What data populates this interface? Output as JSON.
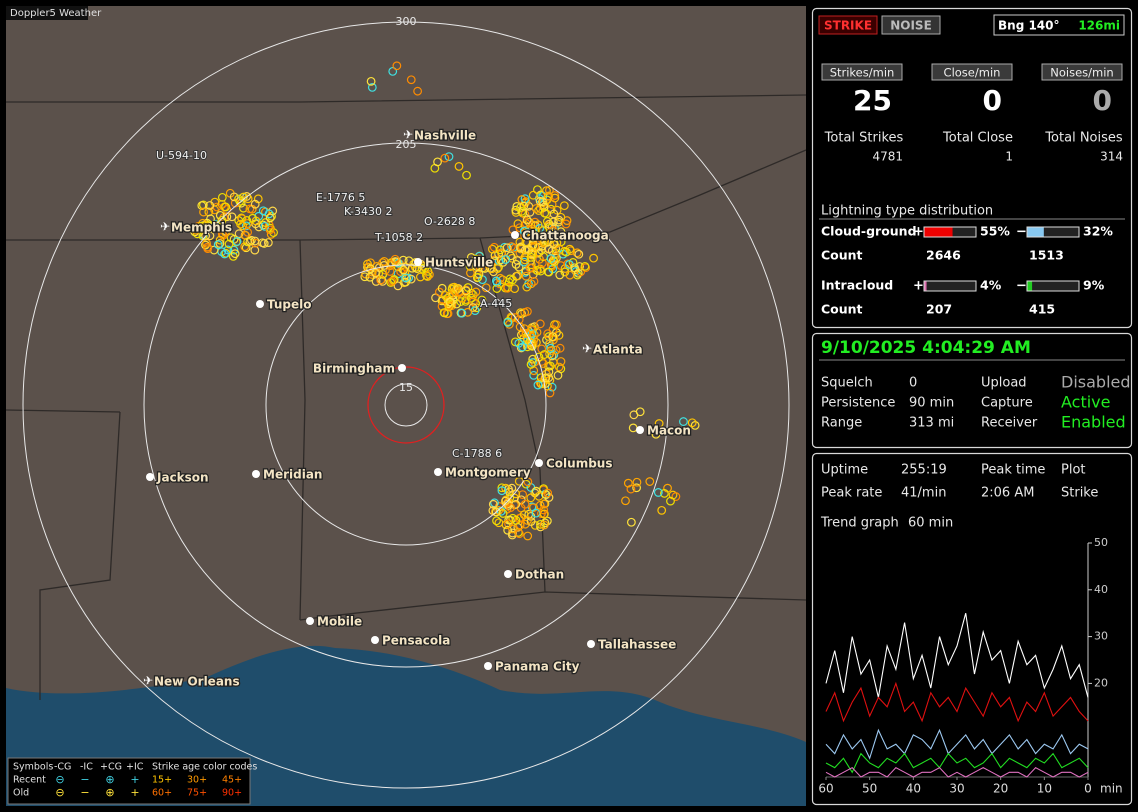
{
  "app_label": "Doppler5 Weather",
  "map": {
    "range_labels": [
      "300",
      "205",
      "15"
    ],
    "airports": [
      "Nashville",
      "Memphis",
      "Atlanta",
      "New Orleans"
    ],
    "cities": [
      "Chattanooga",
      "Huntsville",
      "Tupelo",
      "Birmingham",
      "Macon",
      "Jackson",
      "Meridian",
      "Montgomery",
      "Columbus",
      "Dothan",
      "Mobile",
      "Pensacola",
      "Tallahassee",
      "Panama City"
    ],
    "tracks": [
      "U-594-10",
      "E-1776 5",
      "K-3430 2",
      "O-2628 8",
      "T-1058 2",
      "A-445",
      "C-1788 6"
    ],
    "legend": {
      "title": "Symbols",
      "columns": [
        "-CG",
        "-IC",
        "+CG",
        "+IC"
      ],
      "age_title": "Strike age color codes",
      "rows": [
        {
          "label": "Recent",
          "ages": [
            "15+",
            "30+",
            "45+"
          ]
        },
        {
          "label": "Old",
          "ages": [
            "60+",
            "75+",
            "90+"
          ]
        }
      ]
    }
  },
  "panel": {
    "mode_buttons": [
      "STRIKE",
      "NOISE"
    ],
    "bearing": "Bng 140°",
    "distance": "126mi",
    "rates": [
      {
        "label": "Strikes/min",
        "value": 25
      },
      {
        "label": "Close/min",
        "value": 0
      },
      {
        "label": "Noises/min",
        "value": 0
      }
    ],
    "totals": [
      {
        "label": "Total Strikes",
        "value": 4781
      },
      {
        "label": "Total Close",
        "value": 1
      },
      {
        "label": "Total Noises",
        "value": 314
      }
    ],
    "distribution": {
      "title": "Lightning type distribution",
      "count_label": "Count",
      "signs": [
        "+",
        "−"
      ],
      "rows": [
        {
          "label": "Cloud-ground",
          "pos": {
            "value": 55,
            "label": "55%"
          },
          "neg": {
            "value": 32,
            "label": "32%"
          },
          "pos_count": 2646,
          "neg_count": 1513
        },
        {
          "label": "Intracloud",
          "pos": {
            "value": 4,
            "label": "4%"
          },
          "neg": {
            "value": 9,
            "label": "9%"
          },
          "pos_count": 207,
          "neg_count": 415
        }
      ]
    },
    "status": {
      "datetime": "9/10/2025 4:04:29 AM",
      "items": [
        {
          "label": "Squelch",
          "value": "0"
        },
        {
          "label": "Upload",
          "value": "Disabled"
        },
        {
          "label": "Persistence",
          "value": "90 min"
        },
        {
          "label": "Capture",
          "value": "Active"
        },
        {
          "label": "Range",
          "value": "313 mi"
        },
        {
          "label": "Receiver",
          "value": "Enabled"
        }
      ]
    },
    "stats": [
      {
        "label": "Uptime",
        "value": "255:19"
      },
      {
        "label": "Peak rate",
        "value": "41/min"
      },
      {
        "label": "Peak time",
        "value": "2:06 AM"
      },
      {
        "label": "Plot",
        "value": "Strike"
      }
    ],
    "trend_label": "Trend graph",
    "trend_span": "60 min"
  },
  "chart_data": {
    "type": "line",
    "x": [
      60,
      58,
      56,
      54,
      52,
      50,
      48,
      46,
      44,
      42,
      40,
      38,
      36,
      34,
      32,
      30,
      28,
      26,
      24,
      22,
      20,
      18,
      16,
      14,
      12,
      10,
      8,
      6,
      4,
      2,
      0
    ],
    "series": [
      {
        "color": "#ffffff",
        "values": [
          20,
          27,
          18,
          30,
          22,
          25,
          17,
          28,
          23,
          33,
          21,
          26,
          19,
          30,
          24,
          28,
          35,
          22,
          31,
          25,
          27,
          20,
          29,
          24,
          26,
          19,
          23,
          28,
          21,
          24,
          17
        ]
      },
      {
        "color": "#e01010",
        "values": [
          14,
          18,
          12,
          16,
          19,
          13,
          17,
          15,
          20,
          14,
          16,
          12,
          18,
          15,
          17,
          14,
          19,
          16,
          13,
          18,
          15,
          17,
          12,
          16,
          14,
          18,
          13,
          15,
          17,
          14,
          12
        ]
      },
      {
        "color": "#9cc8f0",
        "values": [
          7,
          5,
          9,
          6,
          8,
          4,
          10,
          6,
          7,
          5,
          9,
          8,
          6,
          10,
          5,
          7,
          9,
          6,
          8,
          5,
          7,
          9,
          6,
          8,
          5,
          7,
          6,
          9,
          5,
          7,
          6
        ]
      },
      {
        "color": "#22dd22",
        "values": [
          3,
          2,
          4,
          1,
          5,
          3,
          2,
          4,
          3,
          5,
          2,
          3,
          4,
          2,
          5,
          3,
          4,
          2,
          3,
          5,
          2,
          4,
          3,
          2,
          4,
          3,
          5,
          2,
          3,
          4,
          2
        ]
      },
      {
        "color": "#e070c0",
        "values": [
          1,
          0,
          1,
          2,
          0,
          1,
          1,
          0,
          2,
          1,
          0,
          1,
          1,
          2,
          0,
          1,
          0,
          1,
          2,
          1,
          0,
          1,
          1,
          0,
          2,
          1,
          0,
          1,
          1,
          0,
          1
        ]
      }
    ],
    "xlim": [
      60,
      0
    ],
    "ylim": [
      0,
      50
    ],
    "xticks": [
      60,
      50,
      40,
      30,
      20,
      10,
      0
    ],
    "yticks": [
      20,
      30,
      40,
      50
    ],
    "x_unit": "min"
  }
}
